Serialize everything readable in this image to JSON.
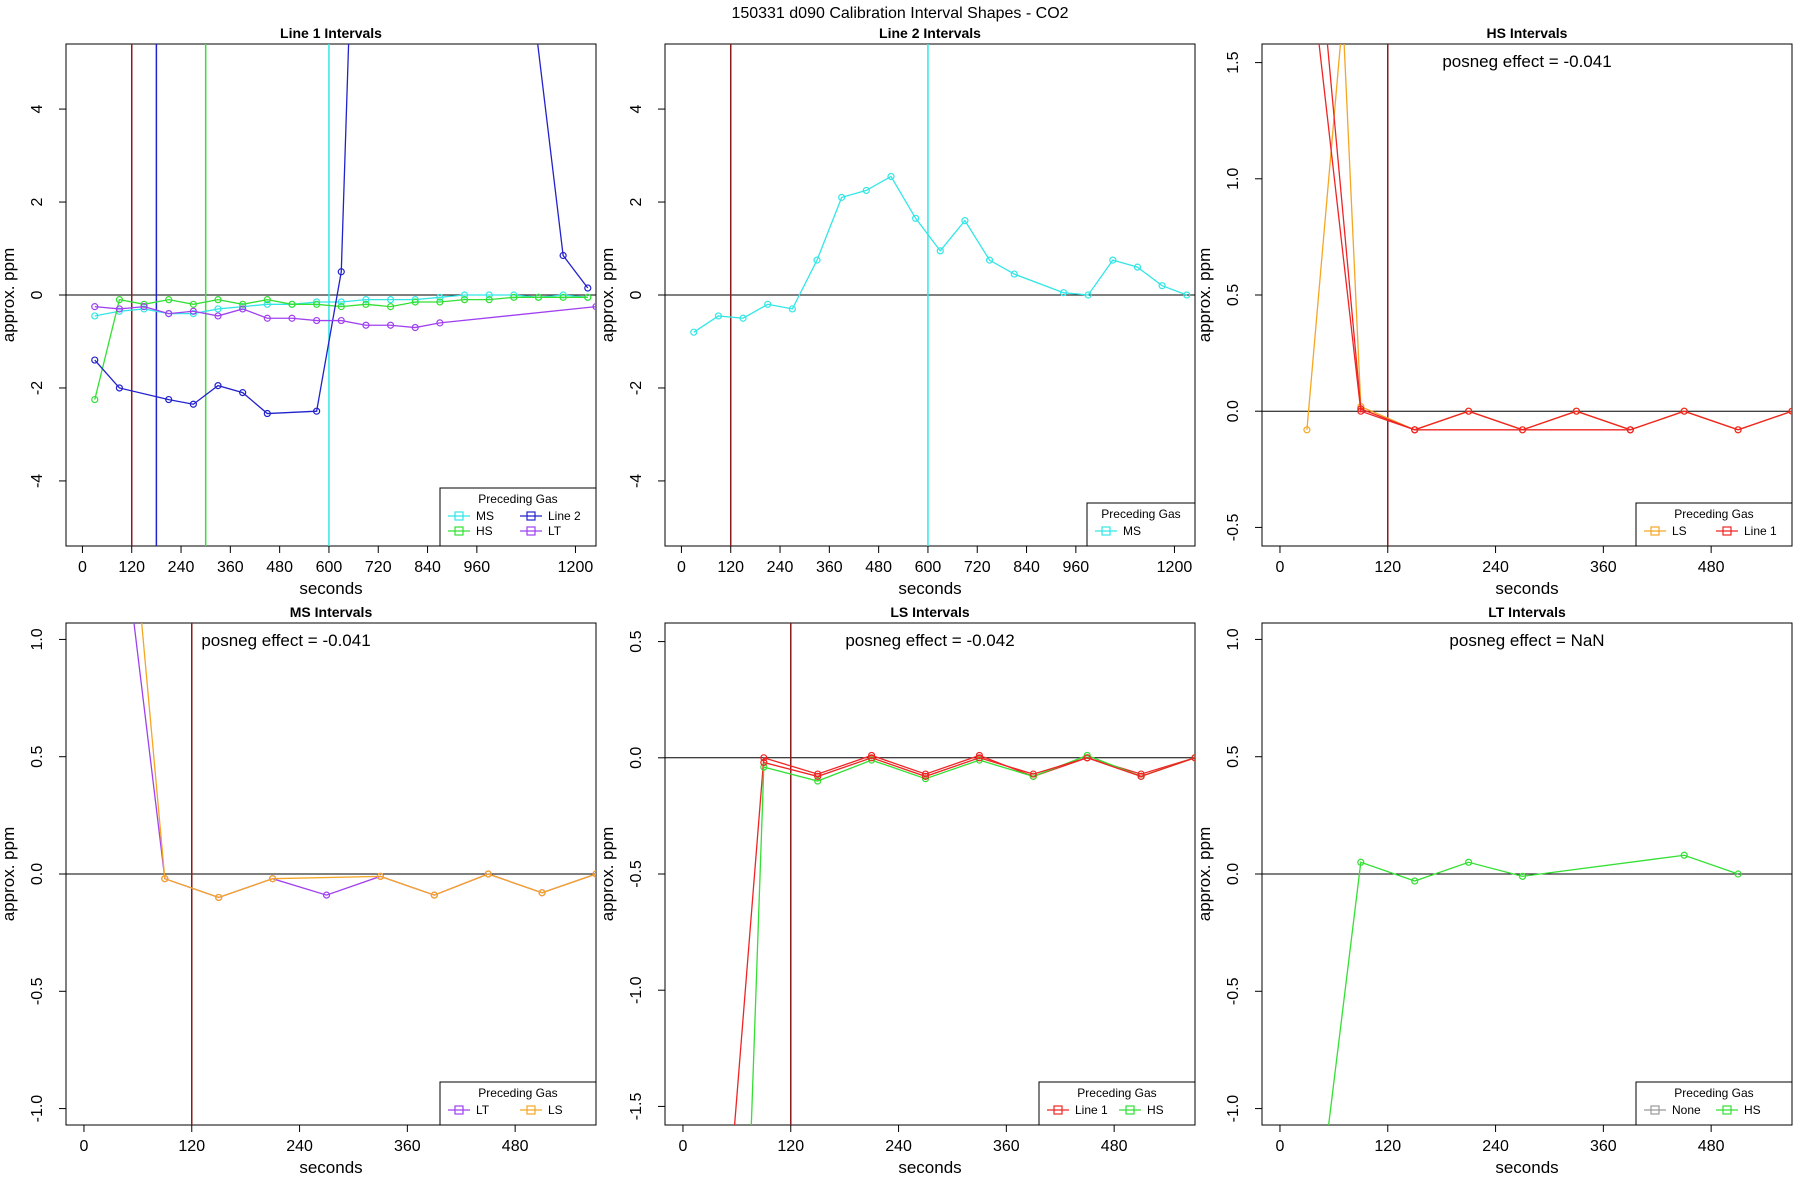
{
  "title": "150331  d090   Calibration Interval Shapes - CO2",
  "colors": {
    "MS": "#33e6e6",
    "HS": "#33e033",
    "LS": "#f5a623",
    "LT": "#a040f0",
    "Line 1": "#f02424",
    "Line 2": "#2222cc",
    "None": "#999999",
    "cal_line": "#8b1a1a",
    "zero_line": "#000000"
  },
  "chart_data": [
    {
      "type": "line",
      "title": "Line 1 Intervals",
      "xlabel": "seconds",
      "ylabel": "approx. ppm",
      "xlim": [
        -40,
        1250
      ],
      "ylim": [
        -5.4,
        5.4
      ],
      "xticks": [
        0,
        120,
        240,
        360,
        480,
        600,
        720,
        840,
        960,
        1200
      ],
      "yticks": [
        -4,
        -2,
        0,
        2,
        4
      ],
      "vlines": [
        {
          "x": 120,
          "color": "cal_line"
        },
        {
          "x": 180,
          "color": "Line 2"
        },
        {
          "x": 300,
          "color": "HS"
        },
        {
          "x": 600,
          "color": "MS"
        }
      ],
      "legend": {
        "title": "Preceding Gas",
        "entries": [
          "MS",
          "HS",
          "Line 2",
          "LT"
        ],
        "columns": 2,
        "position": "bottom-right"
      },
      "series": [
        {
          "name": "MS",
          "x": [
            30,
            90,
            150,
            210,
            270,
            330,
            390,
            450,
            510,
            570,
            630,
            690,
            750,
            810,
            870,
            930,
            990,
            1050,
            1110,
            1170,
            1230
          ],
          "y": [
            -0.45,
            -0.35,
            -0.3,
            -0.4,
            -0.4,
            -0.3,
            -0.25,
            -0.2,
            -0.2,
            -0.15,
            -0.15,
            -0.1,
            -0.1,
            -0.1,
            -0.05,
            0,
            0,
            0,
            -0.05,
            0,
            -0.05
          ]
        },
        {
          "name": "HS",
          "x": [
            30,
            90,
            150,
            210,
            270,
            330,
            390,
            450,
            510,
            570,
            630,
            690,
            750,
            810,
            870,
            930,
            990,
            1050,
            1110,
            1170,
            1230
          ],
          "y": [
            -2.25,
            -0.1,
            -0.2,
            -0.1,
            -0.2,
            -0.1,
            -0.2,
            -0.1,
            -0.2,
            -0.2,
            -0.25,
            -0.2,
            -0.25,
            -0.15,
            -0.15,
            -0.1,
            -0.1,
            -0.05,
            -0.05,
            -0.05,
            -0.05
          ]
        },
        {
          "name": "Line 2",
          "x": [
            30,
            90,
            210,
            270,
            330,
            390,
            450,
            570,
            630,
            650,
            1100,
            1170,
            1230
          ],
          "y": [
            -1.4,
            -2.0,
            -2.25,
            -2.35,
            -1.95,
            -2.1,
            -2.55,
            -2.5,
            0.5,
            6.0,
            6.0,
            0.85,
            0.15
          ]
        },
        {
          "name": "LT",
          "x": [
            30,
            90,
            150,
            210,
            270,
            330,
            390,
            450,
            510,
            570,
            630,
            690,
            750,
            810,
            870,
            1250
          ],
          "y": [
            -0.25,
            -0.3,
            -0.25,
            -0.4,
            -0.35,
            -0.45,
            -0.3,
            -0.5,
            -0.5,
            -0.55,
            -0.55,
            -0.65,
            -0.65,
            -0.7,
            -0.6,
            -0.25
          ]
        }
      ]
    },
    {
      "type": "line",
      "title": "Line 2 Intervals",
      "xlabel": "seconds",
      "ylabel": "approx. ppm",
      "xlim": [
        -40,
        1250
      ],
      "ylim": [
        -5.4,
        5.4
      ],
      "xticks": [
        0,
        120,
        240,
        360,
        480,
        600,
        720,
        840,
        960,
        1200
      ],
      "yticks": [
        -4,
        -2,
        0,
        2,
        4
      ],
      "vlines": [
        {
          "x": 120,
          "color": "cal_line"
        },
        {
          "x": 600,
          "color": "MS"
        }
      ],
      "legend": {
        "title": "Preceding Gas",
        "entries": [
          "MS"
        ],
        "columns": 1,
        "position": "bottom-right"
      },
      "series": [
        {
          "name": "MS",
          "x": [
            30,
            90,
            150,
            210,
            270,
            330,
            390,
            450,
            510,
            570,
            630,
            690,
            750,
            810,
            930,
            990,
            1050,
            1110,
            1170,
            1230
          ],
          "y": [
            -0.8,
            -0.45,
            -0.5,
            -0.2,
            -0.3,
            0.75,
            2.1,
            2.25,
            2.55,
            1.65,
            0.95,
            1.6,
            0.75,
            0.45,
            0.05,
            0.0,
            0.75,
            0.6,
            0.2,
            0.0
          ]
        }
      ]
    },
    {
      "type": "line",
      "title": "HS Intervals",
      "xlabel": "seconds",
      "ylabel": "approx. ppm",
      "xlim": [
        -20,
        570
      ],
      "ylim": [
        -0.58,
        1.58
      ],
      "xticks": [
        0,
        120,
        240,
        360,
        480
      ],
      "yticks": [
        -0.5,
        0.0,
        0.5,
        1.0,
        1.5
      ],
      "vlines": [
        {
          "x": 120,
          "color": "cal_line"
        }
      ],
      "annotation": "posneg effect = -0.041",
      "legend": {
        "title": "Preceding Gas",
        "entries": [
          "LS",
          "Line 1"
        ],
        "columns": 2,
        "position": "bottom-right"
      },
      "series": [
        {
          "name": "LS",
          "x": [
            30,
            70,
            90,
            150,
            210,
            270,
            330,
            390,
            450,
            510,
            570
          ],
          "y": [
            -0.08,
            1.7,
            0.02,
            -0.08,
            0.0,
            -0.08,
            0.0,
            -0.08,
            0.0,
            -0.08,
            0.0
          ]
        },
        {
          "name": "Line 1",
          "x": [
            50,
            90,
            150,
            210,
            270,
            330,
            390,
            450,
            510,
            570
          ],
          "y": [
            1.7,
            0.01,
            -0.08,
            0.0,
            -0.08,
            0.0,
            -0.08,
            0.0,
            -0.08,
            0.0
          ]
        },
        {
          "name": "Line 1",
          "x": [
            40,
            90,
            150,
            390
          ],
          "y": [
            1.7,
            0.0,
            -0.08,
            -0.08
          ]
        }
      ]
    },
    {
      "type": "line",
      "title": "MS Intervals",
      "xlabel": "seconds",
      "ylabel": "approx. ppm",
      "xlim": [
        -20,
        570
      ],
      "ylim": [
        -1.07,
        1.07
      ],
      "xticks": [
        0,
        120,
        240,
        360,
        480
      ],
      "yticks": [
        -1.0,
        -0.5,
        0.0,
        0.5,
        1.0
      ],
      "vlines": [
        {
          "x": 120,
          "color": "cal_line"
        }
      ],
      "annotation": "posneg effect = -0.041",
      "legend": {
        "title": "Preceding Gas",
        "entries": [
          "LT",
          "LS"
        ],
        "columns": 2,
        "position": "bottom-right"
      },
      "series": [
        {
          "name": "LT",
          "x": [
            50,
            90,
            150,
            210,
            270,
            330,
            390,
            450,
            510,
            570
          ],
          "y": [
            1.25,
            -0.02,
            -0.1,
            -0.02,
            -0.09,
            -0.01,
            -0.09,
            0.0,
            -0.08,
            0.0
          ]
        },
        {
          "name": "LS",
          "x": [
            60,
            90,
            150,
            210,
            330,
            390,
            450,
            510,
            570
          ],
          "y": [
            1.25,
            -0.02,
            -0.1,
            -0.02,
            -0.01,
            -0.09,
            0.0,
            -0.08,
            0.0
          ]
        }
      ]
    },
    {
      "type": "line",
      "title": "LS Intervals",
      "xlabel": "seconds",
      "ylabel": "approx. ppm",
      "xlim": [
        -20,
        570
      ],
      "ylim": [
        -1.58,
        0.58
      ],
      "xticks": [
        0,
        120,
        240,
        360,
        480
      ],
      "yticks": [
        -1.5,
        -1.0,
        -0.5,
        0.0,
        0.5
      ],
      "vlines": [
        {
          "x": 120,
          "color": "cal_line"
        }
      ],
      "annotation": "posneg effect = -0.042",
      "legend": {
        "title": "Preceding Gas",
        "entries": [
          "Line 1",
          "HS"
        ],
        "columns": 2,
        "position": "bottom-right"
      },
      "series": [
        {
          "name": "Line 1",
          "x": [
            55,
            90,
            150,
            210,
            270,
            330,
            390,
            450,
            510,
            570
          ],
          "y": [
            -1.7,
            0.0,
            -0.07,
            0.01,
            -0.07,
            0.01,
            -0.08,
            0.0,
            -0.07,
            0.0
          ]
        },
        {
          "name": "HS",
          "x": [
            75,
            90,
            150,
            210,
            270,
            330,
            390,
            450,
            510,
            570
          ],
          "y": [
            -1.7,
            -0.04,
            -0.1,
            -0.01,
            -0.09,
            -0.01,
            -0.08,
            0.01,
            -0.08,
            0.0
          ]
        },
        {
          "name": "Line 1",
          "x": [
            90,
            150,
            210,
            270,
            330,
            390,
            450,
            510,
            570
          ],
          "y": [
            -0.02,
            -0.08,
            0.0,
            -0.08,
            0.0,
            -0.07,
            0.0,
            -0.08,
            0.0
          ]
        }
      ]
    },
    {
      "type": "line",
      "title": "LT Intervals",
      "xlabel": "seconds",
      "ylabel": "approx. ppm",
      "xlim": [
        -20,
        570
      ],
      "ylim": [
        -1.07,
        1.07
      ],
      "xticks": [
        0,
        120,
        240,
        360,
        480
      ],
      "yticks": [
        -1.0,
        -0.5,
        0.0,
        0.5,
        1.0
      ],
      "vlines": [],
      "annotation": "posneg effect = NaN",
      "legend": {
        "title": "Preceding Gas",
        "entries": [
          "None",
          "HS"
        ],
        "columns": 2,
        "position": "bottom-right"
      },
      "series": [
        {
          "name": "HS",
          "x": [
            50,
            90,
            150,
            210,
            270,
            450,
            510
          ],
          "y": [
            -1.2,
            0.05,
            -0.03,
            0.05,
            -0.01,
            0.08,
            0.0
          ]
        }
      ]
    }
  ]
}
